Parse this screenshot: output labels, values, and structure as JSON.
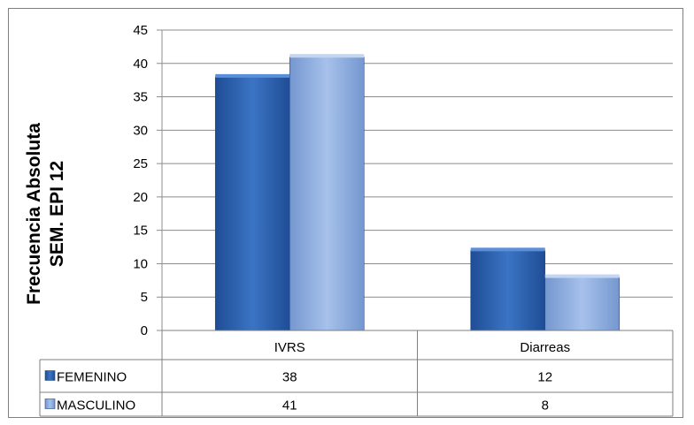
{
  "chart_data": {
    "type": "bar",
    "categories": [
      "IVRS",
      "Diarreas"
    ],
    "series": [
      {
        "name": "FEMENINO",
        "values": [
          38,
          12
        ],
        "color": "#2e64b4"
      },
      {
        "name": "MASCULINO",
        "values": [
          41,
          8
        ],
        "color": "#8eaee0"
      }
    ],
    "ylabel_lines": [
      "Frecuencia Absoluta",
      "SEM. EPI 12"
    ],
    "xlabel": "",
    "ylim": [
      0,
      45
    ],
    "yticks": [
      0,
      5,
      10,
      15,
      20,
      25,
      30,
      35,
      40,
      45
    ],
    "grid": true,
    "legend": "data-table",
    "data_table": true
  }
}
